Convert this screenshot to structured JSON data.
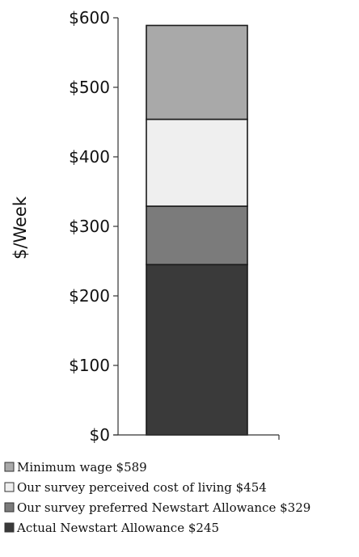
{
  "chart_data": {
    "type": "bar",
    "stacked": true,
    "categories": [
      ""
    ],
    "ylabel": "$/Week",
    "xlabel": "",
    "ylim": [
      0,
      600
    ],
    "yticks": [
      "$0",
      "$100",
      "$200",
      "$300",
      "$400",
      "$500",
      "$600"
    ],
    "ytick_values": [
      0,
      100,
      200,
      300,
      400,
      500,
      600
    ],
    "grid": false,
    "legend_position": "bottom",
    "segments": [
      {
        "name": "Actual Newstart Allowance $245",
        "base": 0,
        "top": 245,
        "color": "#3a3a3a"
      },
      {
        "name": "Our survey preferred Newstart Allowance $329",
        "base": 245,
        "top": 329,
        "color": "#7b7b7b"
      },
      {
        "name": "Our survey perceived cost of living $454",
        "base": 329,
        "top": 454,
        "color": "#efefef"
      },
      {
        "name": "Minimum wage $589",
        "base": 454,
        "top": 589,
        "color": "#a9a9a9"
      }
    ],
    "legend_order": [
      "Minimum wage $589",
      "Our survey perceived cost of living $454",
      "Our survey preferred Newstart Allowance $329",
      "Actual Newstart Allowance $245"
    ]
  }
}
